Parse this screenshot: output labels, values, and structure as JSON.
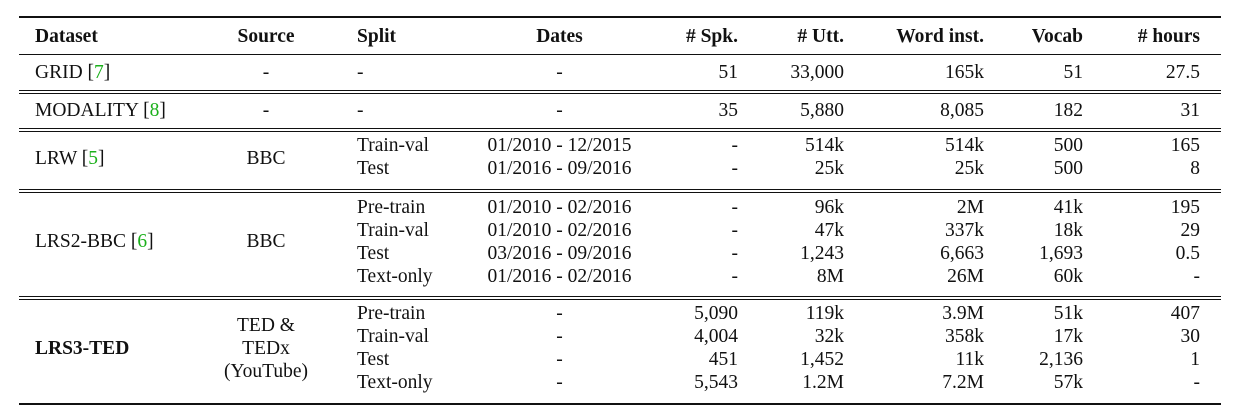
{
  "header": {
    "dataset": "Dataset",
    "source": "Source",
    "split": "Split",
    "dates": "Dates",
    "spk": "# Spk.",
    "utt": "# Utt.",
    "word": "Word inst.",
    "vocab": "Vocab",
    "hours": "# hours"
  },
  "grid": {
    "name": "GRID",
    "cite": "7",
    "source": "-",
    "split": "-",
    "dates": "-",
    "spk": "51",
    "utt": "33,000",
    "word": "165k",
    "vocab": "51",
    "hours": "27.5"
  },
  "modality": {
    "name": "MODALITY",
    "cite": "8",
    "source": "-",
    "split": "-",
    "dates": "-",
    "spk": "35",
    "utt": "5,880",
    "word": "8,085",
    "vocab": "182",
    "hours": "31"
  },
  "lrw": {
    "name": "LRW",
    "cite": "5",
    "source": "BBC",
    "rows": [
      {
        "split": "Train-val",
        "dates": "01/2010 - 12/2015",
        "spk": "-",
        "utt": "514k",
        "word": "514k",
        "vocab": "500",
        "hours": "165"
      },
      {
        "split": "Test",
        "dates": "01/2016 - 09/2016",
        "spk": "-",
        "utt": "25k",
        "word": "25k",
        "vocab": "500",
        "hours": "8"
      }
    ]
  },
  "lrs2": {
    "name": "LRS2-BBC",
    "cite": "6",
    "source": "BBC",
    "rows": [
      {
        "split": "Pre-train",
        "dates": "01/2010 - 02/2016",
        "spk": "-",
        "utt": "96k",
        "word": "2M",
        "vocab": "41k",
        "hours": "195"
      },
      {
        "split": "Train-val",
        "dates": "01/2010 - 02/2016",
        "spk": "-",
        "utt": "47k",
        "word": "337k",
        "vocab": "18k",
        "hours": "29"
      },
      {
        "split": "Test",
        "dates": "03/2016 - 09/2016",
        "spk": "-",
        "utt": "1,243",
        "word": "6,663",
        "vocab": "1,693",
        "hours": "0.5"
      },
      {
        "split": "Text-only",
        "dates": "01/2016 - 02/2016",
        "spk": "-",
        "utt": "8M",
        "word": "26M",
        "vocab": "60k",
        "hours": "-"
      }
    ]
  },
  "lrs3": {
    "name": "LRS3-TED",
    "source_lines": [
      "TED &",
      "TEDx",
      "(YouTube)"
    ],
    "rows": [
      {
        "split": "Pre-train",
        "dates": "-",
        "spk": "5,090",
        "utt": "119k",
        "word": "3.9M",
        "vocab": "51k",
        "hours": "407"
      },
      {
        "split": "Train-val",
        "dates": "-",
        "spk": "4,004",
        "utt": "32k",
        "word": "358k",
        "vocab": "17k",
        "hours": "30"
      },
      {
        "split": "Test",
        "dates": "-",
        "spk": "451",
        "utt": "1,452",
        "word": "11k",
        "vocab": "2,136",
        "hours": "1"
      },
      {
        "split": "Text-only",
        "dates": "-",
        "spk": "5,543",
        "utt": "1.2M",
        "word": "7.2M",
        "vocab": "57k",
        "hours": "-"
      }
    ]
  }
}
